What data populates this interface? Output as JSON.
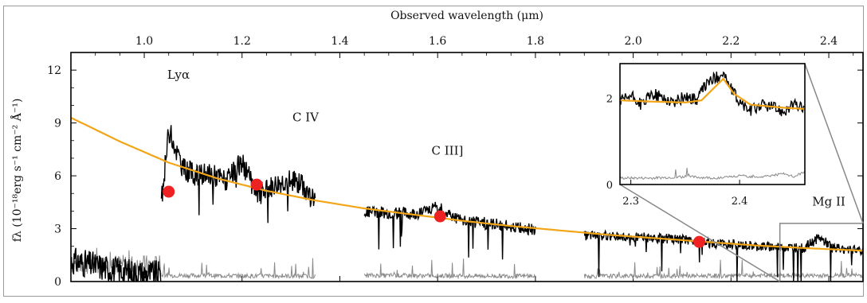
{
  "chart_data": [
    {
      "type": "line",
      "panel": "main",
      "xlabel_top": "Observed wavelength (μm)",
      "ylabel": "fλ (10⁻¹⁸erg s⁻¹ cm⁻² Å⁻¹)",
      "xlim": [
        0.85,
        2.47
      ],
      "ylim": [
        0,
        13
      ],
      "x_ticks": [
        1.0,
        1.2,
        1.4,
        1.6,
        1.8,
        2.0,
        2.2,
        2.4
      ],
      "y_ticks": [
        0,
        3,
        6,
        9,
        12
      ],
      "x_tick_labels": [
        "1.0",
        "1.2",
        "1.4",
        "1.6",
        "1.8",
        "2.0",
        "2.2",
        "2.4"
      ],
      "y_tick_labels": [
        "0",
        "3",
        "6",
        "9",
        "12"
      ],
      "colors": {
        "spectrum": "#000000",
        "noise": "#8a8a8a",
        "model": "#f2a516",
        "photometry": "#ee2222",
        "inset_frame": "#888888"
      },
      "annotations": [
        {
          "text": "Lyα",
          "x": 1.07,
          "y": 11.5
        },
        {
          "text": "C IV",
          "x": 1.33,
          "y": 9.1
        },
        {
          "text": "C III]",
          "x": 1.62,
          "y": 7.2
        },
        {
          "text": "Mg II",
          "x": 2.4,
          "y": 4.3
        }
      ],
      "lyman_break_x": 1.035,
      "series": [
        {
          "role": "model",
          "x": [
            0.85,
            0.95,
            1.05,
            1.15,
            1.25,
            1.35,
            1.45,
            1.55,
            1.65,
            1.75,
            1.85,
            1.95,
            2.05,
            2.15,
            2.25,
            2.35,
            2.47
          ],
          "y": [
            9.3,
            7.95,
            6.75,
            5.85,
            5.15,
            4.6,
            4.15,
            3.8,
            3.45,
            3.15,
            2.9,
            2.65,
            2.45,
            2.25,
            2.05,
            1.9,
            1.75
          ]
        },
        {
          "role": "photometry",
          "x": [
            1.05,
            1.23,
            1.605,
            2.135
          ],
          "y": [
            5.1,
            5.5,
            3.7,
            2.25
          ]
        },
        {
          "role": "spectrum",
          "segments": [
            {
              "x": [
                0.85,
                0.9,
                0.95,
                1.0,
                1.035
              ],
              "y": [
                1.2,
                0.9,
                0.6,
                0.45,
                0.4
              ]
            },
            {
              "x": [
                1.035,
                1.05,
                1.08,
                1.11,
                1.14,
                1.17,
                1.2,
                1.23,
                1.26,
                1.29,
                1.32,
                1.35
              ],
              "y": [
                4.5,
                8.6,
                6.4,
                6.0,
                6.1,
                5.7,
                6.8,
                4.9,
                5.4,
                5.8,
                5.6,
                4.5
              ]
            },
            {
              "x": [
                1.45,
                1.5,
                1.55,
                1.6,
                1.65,
                1.7,
                1.75,
                1.8
              ],
              "y": [
                4.0,
                3.9,
                3.85,
                4.2,
                3.45,
                3.3,
                3.15,
                2.9
              ]
            },
            {
              "x": [
                1.9,
                1.95,
                2.0,
                2.05,
                2.1,
                2.15,
                2.2,
                2.25,
                2.3,
                2.35,
                2.38,
                2.41,
                2.47
              ],
              "y": [
                2.6,
                2.6,
                2.55,
                2.45,
                2.4,
                2.2,
                2.1,
                2.0,
                1.95,
                1.9,
                2.5,
                1.9,
                1.8
              ]
            }
          ]
        },
        {
          "role": "noise",
          "segments": [
            {
              "x": [
                0.85,
                1.035
              ],
              "y": [
                1.0,
                0.9
              ]
            },
            {
              "x": [
                1.035,
                1.35
              ],
              "y": [
                0.35,
                0.3
              ]
            },
            {
              "x": [
                1.45,
                1.8
              ],
              "y": [
                0.35,
                0.3
              ]
            },
            {
              "x": [
                1.9,
                2.47
              ],
              "y": [
                0.3,
                0.35
              ]
            }
          ]
        }
      ],
      "inset_region": {
        "x": [
          2.3,
          2.47
        ],
        "y": [
          0,
          3.3
        ]
      }
    },
    {
      "type": "line",
      "panel": "inset",
      "xlim": [
        2.29,
        2.46
      ],
      "ylim": [
        0,
        2.8
      ],
      "x_ticks": [
        2.3,
        2.4
      ],
      "y_ticks": [
        0,
        2
      ],
      "x_tick_labels": [
        "2.3",
        "2.4"
      ],
      "y_tick_labels": [
        "0",
        "2"
      ],
      "series": [
        {
          "role": "model",
          "x": [
            2.29,
            2.32,
            2.35,
            2.365,
            2.375,
            2.385,
            2.395,
            2.41,
            2.44,
            2.46
          ],
          "y": [
            1.95,
            1.92,
            1.9,
            1.95,
            2.2,
            2.45,
            2.1,
            1.85,
            1.78,
            1.75
          ]
        },
        {
          "role": "spectrum",
          "x": [
            2.29,
            2.3,
            2.31,
            2.32,
            2.33,
            2.34,
            2.35,
            2.36,
            2.37,
            2.38,
            2.385,
            2.39,
            2.4,
            2.41,
            2.42,
            2.43,
            2.44,
            2.45,
            2.46
          ],
          "y": [
            1.9,
            2.05,
            1.85,
            2.1,
            2.0,
            1.9,
            2.05,
            1.95,
            2.35,
            2.5,
            2.6,
            2.3,
            1.9,
            1.7,
            1.85,
            1.8,
            1.7,
            1.85,
            1.75
          ]
        },
        {
          "role": "noise",
          "x": [
            2.29,
            2.32,
            2.35,
            2.38,
            2.4,
            2.42,
            2.44,
            2.45,
            2.46
          ],
          "y": [
            0.15,
            0.15,
            0.18,
            0.15,
            0.2,
            0.18,
            0.25,
            0.18,
            0.3
          ]
        }
      ]
    }
  ]
}
